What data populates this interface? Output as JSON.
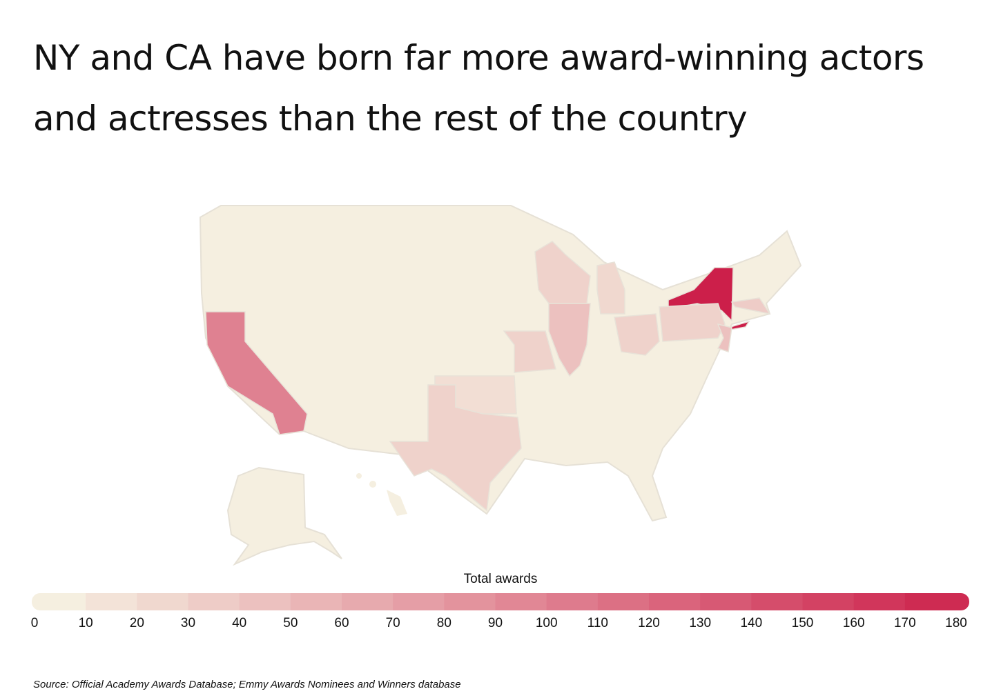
{
  "chart_data": {
    "type": "choropleth",
    "title": "NY and CA have born far more award-winning actors and actresses than the rest of the country",
    "legend_title": "Total awards",
    "values": [
      180,
      95,
      25,
      40,
      25,
      20,
      25,
      25,
      40,
      25,
      15,
      30
    ],
    "colors": [
      "#f5efe0",
      "#cc1f4a"
    ],
    "xlim": [
      0,
      180
    ],
    "xticks": [
      0,
      10,
      20,
      30,
      40,
      50,
      60,
      70,
      80,
      90,
      100,
      110,
      120,
      130,
      140,
      150,
      160,
      170,
      180
    ],
    "source": "Source:  Official Academy Awards Database; Emmy Awards Nominees and Winners database"
  }
}
